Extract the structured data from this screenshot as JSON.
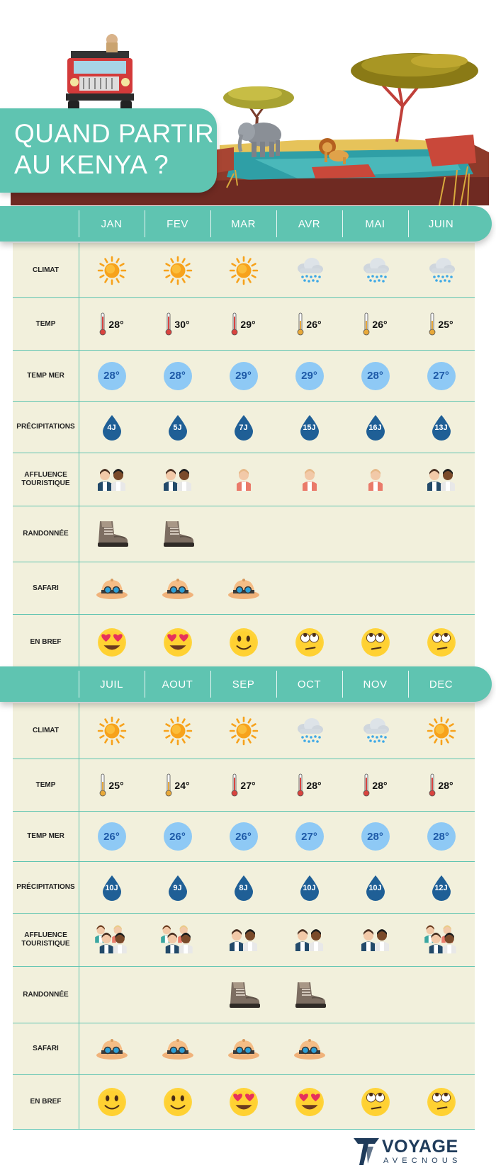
{
  "title": {
    "line1": "QUAND PARTIR",
    "line2": "AU KENYA ?"
  },
  "row_labels": {
    "climat": "CLIMAT",
    "temp": "TEMP",
    "temp_mer": "TEMP MER",
    "precipitations": "PRÉCIPITATIONS",
    "affluence": "AFFLUENCE TOURISTIQUE",
    "randonnee": "RANDONNÉE",
    "safari": "SAFARI",
    "en_bref": "EN BREF"
  },
  "sections": [
    {
      "months": [
        "JAN",
        "FEV",
        "MAR",
        "AVR",
        "MAI",
        "JUIN"
      ],
      "climat": [
        "sun",
        "sun",
        "sun",
        "rain",
        "rain",
        "rain"
      ],
      "temp": [
        "28°",
        "30°",
        "29°",
        "26°",
        "26°",
        "25°"
      ],
      "temp_level": [
        "hot",
        "hot",
        "hot",
        "warm",
        "warm",
        "warm"
      ],
      "temp_mer": [
        "28°",
        "28°",
        "29°",
        "29°",
        "28°",
        "27°"
      ],
      "precipitations": [
        "4J",
        "5J",
        "7J",
        "15J",
        "16J",
        "13J"
      ],
      "affluence": [
        "medium",
        "medium",
        "low",
        "low",
        "low",
        "medium"
      ],
      "randonnee": [
        true,
        true,
        false,
        false,
        false,
        false
      ],
      "safari": [
        true,
        true,
        true,
        false,
        false,
        false
      ],
      "en_bref": [
        "love",
        "love",
        "smile",
        "meh",
        "meh",
        "meh"
      ]
    },
    {
      "months": [
        "JUIL",
        "AOUT",
        "SEP",
        "OCT",
        "NOV",
        "DEC"
      ],
      "climat": [
        "sun",
        "sun",
        "sun",
        "rain",
        "rain",
        "sun"
      ],
      "temp": [
        "25°",
        "24°",
        "27°",
        "28°",
        "28°",
        "28°"
      ],
      "temp_level": [
        "warm",
        "warm",
        "hot",
        "hot",
        "hot",
        "hot"
      ],
      "temp_mer": [
        "26°",
        "26°",
        "26°",
        "27°",
        "28°",
        "28°"
      ],
      "precipitations": [
        "10J",
        "9J",
        "8J",
        "10J",
        "10J",
        "12J"
      ],
      "affluence": [
        "high",
        "high",
        "medium",
        "medium",
        "medium",
        "high"
      ],
      "randonnee": [
        false,
        false,
        true,
        true,
        false,
        false
      ],
      "safari": [
        true,
        true,
        true,
        true,
        false,
        false
      ],
      "en_bref": [
        "smile",
        "smile",
        "love",
        "love",
        "meh",
        "meh"
      ]
    }
  ],
  "logo": {
    "main": "VOYAGE",
    "sub": "AVECNOUS"
  },
  "colors": {
    "teal": "#5fc4b1",
    "cream": "#f2f0dc",
    "drop": "#1f5f96",
    "sea_circle": "#8ec9f5",
    "sun": "#f7a21b"
  },
  "icons": {
    "sun": "sun-icon",
    "rain": "rain-cloud-icon",
    "temp": "thermometer-icon",
    "drop": "raindrop-icon",
    "hike": "hiking-boot-icon",
    "safari": "safari-hat-icon",
    "love": "heart-eyes-emoji-icon",
    "smile": "smile-emoji-icon",
    "meh": "eye-roll-emoji-icon"
  }
}
